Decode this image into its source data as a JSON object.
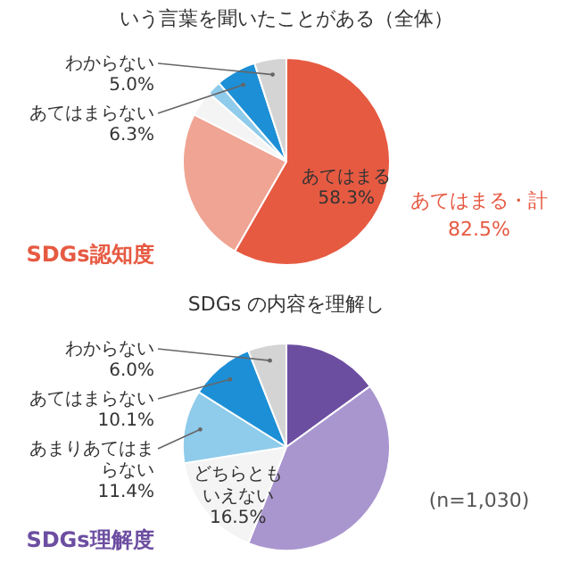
{
  "chart_data": [
    {
      "type": "pie",
      "title": "いう言葉を聞いたことがある（全体）",
      "categories": [
        "あてはまる",
        null,
        null,
        null,
        "あてはまらない",
        "わからない"
      ],
      "values": [
        58.3,
        24.2,
        4.0,
        2.2,
        6.3,
        5.0
      ],
      "value_labels": [
        "58.3%",
        null,
        null,
        null,
        "6.3%",
        "5.0%"
      ],
      "colors": [
        "#e65a42",
        "#f0a493",
        "#f4f4f4",
        "#8fcbea",
        "#1d8fd6",
        "#d4d4d4"
      ],
      "annotations": [
        "あてはまる・計\n82.5%",
        "SDGs認知度"
      ]
    },
    {
      "type": "pie",
      "title": "SDGs の内容を理解し",
      "categories": [
        null,
        null,
        "どちらともいえない",
        "あまりあてはまらない",
        "あてはまらない",
        "わからない"
      ],
      "values": [
        15.0,
        41.0,
        16.5,
        11.4,
        10.1,
        6.0
      ],
      "value_labels": [
        null,
        null,
        "16.5%",
        "11.4%",
        "10.1%",
        "6.0%"
      ],
      "colors": [
        "#6c4ea1",
        "#a996cf",
        "#f4f4f4",
        "#8fcbea",
        "#1d8fd6",
        "#d4d4d4"
      ],
      "annotations": [
        "(n=1,030)",
        "SDGs理解度"
      ]
    }
  ]
}
